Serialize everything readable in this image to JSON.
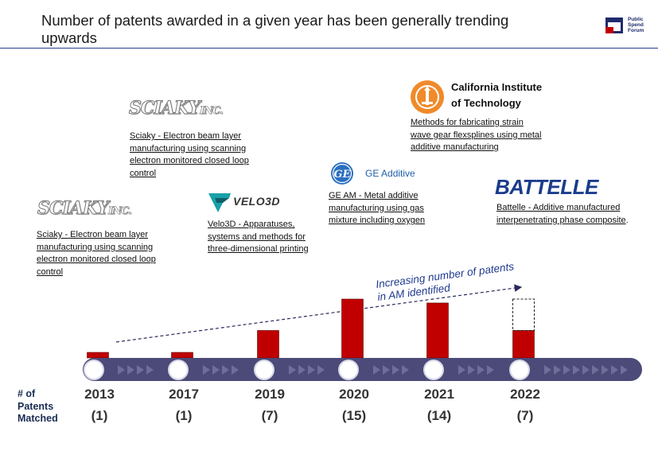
{
  "title": "Number of patents awarded in a given year has been generally trending upwards",
  "logo": {
    "text": [
      "Public",
      "Spend",
      "Forum"
    ]
  },
  "trend_annotation": [
    "Increasing number of patents",
    "in AM identified"
  ],
  "row_label": [
    "# of",
    "Patents",
    "Matched"
  ],
  "cards": [
    {
      "company_logo": "Sciaky Inc.",
      "logo_main": "SCIAKY",
      "logo_suffix": "INC.",
      "text": "Sciaky - Electron beam layer manufacturing using scanning electron monitored closed loop control"
    },
    {
      "company_logo": "Sciaky Inc.",
      "logo_main": "SCIAKY",
      "logo_suffix": "INC.",
      "text": "Sciaky - Electron beam layer manufacturing using scanning electron monitored closed loop control"
    },
    {
      "company_logo": "VELO3D",
      "text": "Velo3D - Apparatuses, systems and methods for three-dimensional printing"
    },
    {
      "company_logo": "GE Additive",
      "icon": "ge-monogram-icon",
      "text": "GE AM - Metal additive manufacturing using gas mixture including oxygen"
    },
    {
      "company_logo": "California Institute of Technology",
      "name_lines": [
        "California Institute",
        "of Technology"
      ],
      "icon": "caltech-seal-icon",
      "text": "Methods for fabricating strain wave gear flexsplines using metal additive manufacturing"
    },
    {
      "company_logo": "BATTELLE",
      "text": "Battelle - Additive manufactured interpenetrating phase composite",
      "trailing": "."
    }
  ],
  "colors": {
    "bar": "#c00000",
    "timeline": "#4b4a78",
    "title_rule": "#2a3e8c",
    "text_dark": "#1a2c55"
  },
  "chart_data": {
    "type": "bar",
    "categories": [
      "2013",
      "2017",
      "2019",
      "2020",
      "2021",
      "2022"
    ],
    "count_labels": [
      "(1)",
      "(1)",
      "(7)",
      "(15)",
      "(14)",
      "(7)"
    ],
    "values": [
      1,
      1,
      7,
      15,
      14,
      7
    ],
    "projected_extra": [
      0,
      0,
      0,
      0,
      0,
      8
    ],
    "ylim": [
      0,
      15
    ],
    "title": "",
    "xlabel": "",
    "ylabel": "",
    "trend": "increasing (dashed arrow)",
    "grid": false
  }
}
